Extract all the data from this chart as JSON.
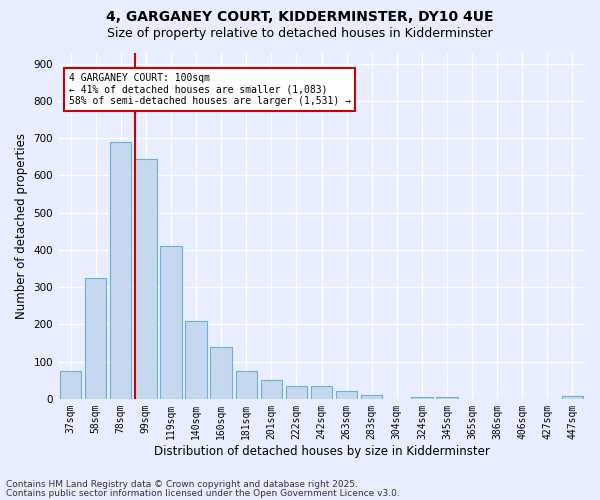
{
  "title": "4, GARGANEY COURT, KIDDERMINSTER, DY10 4UE",
  "subtitle": "Size of property relative to detached houses in Kidderminster",
  "xlabel": "Distribution of detached houses by size in Kidderminster",
  "ylabel": "Number of detached properties",
  "categories": [
    "37sqm",
    "58sqm",
    "78sqm",
    "99sqm",
    "119sqm",
    "140sqm",
    "160sqm",
    "181sqm",
    "201sqm",
    "222sqm",
    "242sqm",
    "263sqm",
    "283sqm",
    "304sqm",
    "324sqm",
    "345sqm",
    "365sqm",
    "386sqm",
    "406sqm",
    "427sqm",
    "447sqm"
  ],
  "values": [
    75,
    325,
    690,
    645,
    410,
    210,
    140,
    75,
    50,
    35,
    35,
    20,
    10,
    0,
    5,
    5,
    0,
    0,
    0,
    0,
    8
  ],
  "bar_color": "#c5d8f0",
  "bar_edge_color": "#6baed6",
  "red_line_index": 3,
  "red_line_color": "#cc0000",
  "ylim": [
    0,
    930
  ],
  "yticks": [
    0,
    100,
    200,
    300,
    400,
    500,
    600,
    700,
    800,
    900
  ],
  "annotation_text": "4 GARGANEY COURT: 100sqm\n← 41% of detached houses are smaller (1,083)\n58% of semi-detached houses are larger (1,531) →",
  "annotation_box_color": "#ffffff",
  "annotation_box_edge": "#cc0000",
  "footer_line1": "Contains HM Land Registry data © Crown copyright and database right 2025.",
  "footer_line2": "Contains public sector information licensed under the Open Government Licence v3.0.",
  "bg_color": "#e8eeff",
  "plot_bg_color": "#e8eeff",
  "grid_color": "#ffffff",
  "title_fontsize": 10,
  "subtitle_fontsize": 9,
  "tick_fontsize": 7,
  "label_fontsize": 8.5,
  "footer_fontsize": 6.5
}
